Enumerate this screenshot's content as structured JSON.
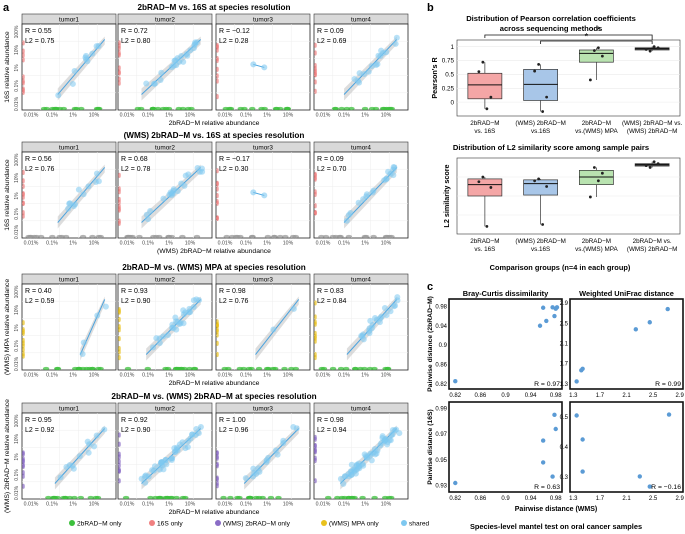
{
  "panel_letters": [
    "a",
    "b",
    "c"
  ],
  "legend": [
    {
      "label": "2bRAD−M only",
      "color": "#3cc03c"
    },
    {
      "label": "16S only",
      "color": "#f08080"
    },
    {
      "label": "(WMS) 2bRAD−M only",
      "color": "#8a6cc6"
    },
    {
      "label": "(WMS) MPA only",
      "color": "#e9c21e"
    },
    {
      "label": "shared",
      "color": "#7ec8f0"
    }
  ],
  "chart_data": [
    {
      "type": "scatter",
      "panel": "a",
      "title": "2bRAD−M vs. 16S at species resolution",
      "xlabel": "2bRAD−M relative abundance",
      "ylabel": "16S relative abundance",
      "x_ticks": [
        "0.01%",
        "0.1%",
        "1%",
        "10%"
      ],
      "y_ticks": [
        "0.01%",
        "0.1%",
        "1%",
        "10%",
        "100%"
      ],
      "facets": [
        {
          "name": "tumor1",
          "R": "R = 0.55",
          "L2": "L2 = 0.75"
        },
        {
          "name": "tumor2",
          "R": "R = 0.72",
          "L2": "L2 = 0.80"
        },
        {
          "name": "tumor3",
          "R": "R = −0.12",
          "L2": "L2 = 0.28"
        },
        {
          "name": "tumor4",
          "R": "R = 0.09",
          "L2": "L2 = 0.69"
        }
      ]
    },
    {
      "type": "scatter",
      "panel": "a",
      "title": "(WMS) 2bRAD−M vs. 16S at species resolution",
      "xlabel": "(WMS) 2bRAD−M relative abundance",
      "ylabel": "16S relative abundance",
      "x_ticks": [
        "0.01%",
        "0.1%",
        "1%",
        "10%"
      ],
      "y_ticks": [
        "0.01%",
        "0.1%",
        "1%",
        "10%",
        "100%"
      ],
      "facets": [
        {
          "name": "tumor1",
          "R": "R = 0.56",
          "L2": "L2 = 0.76"
        },
        {
          "name": "tumor2",
          "R": "R = 0.68",
          "L2": "L2 = 0.78"
        },
        {
          "name": "tumor3",
          "R": "R = −0.17",
          "L2": "L2 = 0.30"
        },
        {
          "name": "tumor4",
          "R": "R = 0.09",
          "L2": "L2 = 0.70"
        }
      ]
    },
    {
      "type": "scatter",
      "panel": "a",
      "title": "2bRAD−M vs. (WMS) MPA at species resolution",
      "xlabel": "2bRAD−M relative abundance",
      "ylabel": "(WMS) MPA relative abundance",
      "x_ticks": [
        "0.01%",
        "0.1%",
        "1%",
        "10%"
      ],
      "y_ticks": [
        "0.01%",
        "0.1%",
        "1%",
        "10%",
        "100%"
      ],
      "facets": [
        {
          "name": "tumor1",
          "R": "R = 0.40",
          "L2": "L2 = 0.59"
        },
        {
          "name": "tumor2",
          "R": "R = 0.93",
          "L2": "L2 = 0.90"
        },
        {
          "name": "tumor3",
          "R": "R = 0.98",
          "L2": "L2 = 0.76"
        },
        {
          "name": "tumor4",
          "R": "R = 0.83",
          "L2": "L2 = 0.84"
        }
      ]
    },
    {
      "type": "scatter",
      "panel": "a",
      "title": "2bRAD−M vs. (WMS) 2bRAD−M at species resolution",
      "xlabel": "2bRAD−M relative abundance",
      "ylabel": "(WMS) 2bRAD−M relative abundance",
      "x_ticks": [
        "0.01%",
        "0.1%",
        "1%",
        "10%"
      ],
      "y_ticks": [
        "0.01%",
        "0.1%",
        "1%",
        "10%",
        "100%"
      ],
      "facets": [
        {
          "name": "tumor1",
          "R": "R = 0.95",
          "L2": "L2 = 0.92"
        },
        {
          "name": "tumor2",
          "R": "R = 0.92",
          "L2": "L2 = 0.90"
        },
        {
          "name": "tumor3",
          "R": "R = 1.00",
          "L2": "L2 = 0.96"
        },
        {
          "name": "tumor4",
          "R": "R = 0.98",
          "L2": "L2 = 0.94"
        }
      ]
    },
    {
      "type": "box",
      "panel": "b",
      "title": "Distribution of Pearson correlation coefficients across sequencing methods",
      "title_lines": [
        "Distribution of Pearson correlation coefficients",
        "across sequencing methods"
      ],
      "ylabel": "Pearson's R",
      "y_ticks": [
        0,
        0.25,
        0.5,
        0.75,
        1
      ],
      "ylim": [
        -0.25,
        1.12
      ],
      "significance": [
        "*",
        "*"
      ],
      "groups": [
        {
          "label": [
            "2bRAD−M",
            "vs. 16S"
          ],
          "color": "#f4a6a6",
          "min": -0.12,
          "q1": 0.06,
          "median": 0.31,
          "q3": 0.52,
          "max": 0.72,
          "points": [
            0.55,
            0.72,
            -0.12,
            0.09
          ]
        },
        {
          "label": [
            "(WMS) 2bRAD−M",
            "vs.16S"
          ],
          "color": "#a8c6e8",
          "min": -0.17,
          "q1": 0.03,
          "median": 0.32,
          "q3": 0.59,
          "max": 0.68,
          "points": [
            0.56,
            0.68,
            -0.17,
            0.09
          ]
        },
        {
          "label": [
            "2bRAD−M",
            "vs.(WMS) MPA"
          ],
          "color": "#b9e3b0",
          "min": 0.4,
          "q1": 0.72,
          "median": 0.88,
          "q3": 0.94,
          "max": 0.98,
          "points": [
            0.4,
            0.93,
            0.98,
            0.83
          ]
        },
        {
          "label": [
            "(WMS) 2bRAD−M vs.",
            "(WMS) 2bRAD−M"
          ],
          "color": "#555555",
          "min": 0.92,
          "q1": 0.94,
          "median": 0.965,
          "q3": 0.98,
          "max": 1.0,
          "points": [
            0.95,
            0.92,
            1.0,
            0.98
          ]
        }
      ]
    },
    {
      "type": "box",
      "panel": "b",
      "title": "Distribution of L2 similarity score among sample pairs",
      "ylabel": "L2 similarity score",
      "xlabel": "Comparison groups (n=4 in each group)",
      "ylim": [
        0.2,
        1.0
      ],
      "groups": [
        {
          "label": [
            "2bRAD−M",
            "vs. 16S"
          ],
          "color": "#f4a6a6",
          "min": 0.28,
          "q1": 0.6,
          "median": 0.72,
          "q3": 0.78,
          "max": 0.8,
          "points": [
            0.75,
            0.8,
            0.28,
            0.69
          ]
        },
        {
          "label": [
            "(WMS) 2bRAD−M",
            "vs.16S"
          ],
          "color": "#a8c6e8",
          "min": 0.3,
          "q1": 0.61,
          "median": 0.73,
          "q3": 0.77,
          "max": 0.78,
          "points": [
            0.76,
            0.78,
            0.3,
            0.7
          ]
        },
        {
          "label": [
            "2bRAD−M",
            "vs.(WMS) MPA"
          ],
          "color": "#b9e3b0",
          "min": 0.59,
          "q1": 0.72,
          "median": 0.8,
          "q3": 0.87,
          "max": 0.9,
          "points": [
            0.59,
            0.9,
            0.76,
            0.84
          ]
        },
        {
          "label": [
            "2bRAD−M  vs.",
            "(WMS) 2bRAD−M"
          ],
          "color": "#555555",
          "min": 0.9,
          "q1": 0.915,
          "median": 0.93,
          "q3": 0.94,
          "max": 0.96,
          "points": [
            0.92,
            0.9,
            0.96,
            0.94
          ]
        }
      ]
    },
    {
      "type": "scatter",
      "panel": "c",
      "title": "Species-level mantel test on oral cancer samples",
      "xlabel": "Pairwise distance (WMS)",
      "row_labels": [
        "Pairwise distance (2bRAD−M)",
        "Pairwise distance (16S)"
      ],
      "col_titles": [
        "Bray-Curtis dissimilarity",
        "Weighted UniFrac distance"
      ],
      "subplots": [
        {
          "R": "R = 0.97",
          "x_ticks": [
            0.82,
            0.86,
            0.9,
            0.94,
            0.98
          ],
          "y_ticks": [
            0.82,
            0.86,
            0.9,
            0.94,
            0.98
          ],
          "xlim": [
            0.81,
            0.99
          ],
          "ylim": [
            0.81,
            0.995
          ],
          "points": [
            [
              0.82,
              0.826
            ],
            [
              0.955,
              0.94
            ],
            [
              0.965,
              0.95
            ],
            [
              0.96,
              0.977
            ],
            [
              0.975,
              0.978
            ],
            [
              0.98,
              0.975
            ],
            [
              0.982,
              0.978
            ],
            [
              0.978,
              0.96
            ]
          ]
        },
        {
          "R": "R = 0.99",
          "x_ticks": [
            1.3,
            1.7,
            2.1,
            2.5,
            2.9
          ],
          "y_ticks": [
            1.3,
            1.7,
            2.1,
            2.5,
            2.9
          ],
          "xlim": [
            1.25,
            2.95
          ],
          "ylim": [
            1.2,
            2.98
          ],
          "points": [
            [
              1.35,
              1.35
            ],
            [
              1.42,
              1.57
            ],
            [
              1.44,
              1.6
            ],
            [
              2.24,
              2.38
            ],
            [
              2.45,
              2.52
            ],
            [
              2.72,
              2.78
            ]
          ]
        },
        {
          "R": "R = 0.63",
          "x_ticks": [
            0.82,
            0.86,
            0.9,
            0.94,
            0.98
          ],
          "y_ticks": [
            0.93,
            0.95,
            0.97,
            0.99
          ],
          "xlim": [
            0.81,
            0.99
          ],
          "ylim": [
            0.925,
            0.995
          ],
          "points": [
            [
              0.82,
              0.932
            ],
            [
              0.96,
              0.948
            ],
            [
              0.975,
              0.937
            ],
            [
              0.98,
              0.974
            ],
            [
              0.978,
              0.985
            ],
            [
              0.96,
              0.965
            ]
          ]
        },
        {
          "R": "R = −0.16",
          "x_ticks": [
            1.3,
            1.7,
            2.1,
            2.5,
            2.9
          ],
          "y_ticks": [
            0.3,
            0.4,
            0.5
          ],
          "xlim": [
            1.25,
            2.95
          ],
          "ylim": [
            0.25,
            0.55
          ],
          "points": [
            [
              1.35,
              0.505
            ],
            [
              1.44,
              0.425
            ],
            [
              1.44,
              0.318
            ],
            [
              2.3,
              0.302
            ],
            [
              2.45,
              0.268
            ],
            [
              2.74,
              0.508
            ]
          ]
        }
      ]
    }
  ]
}
